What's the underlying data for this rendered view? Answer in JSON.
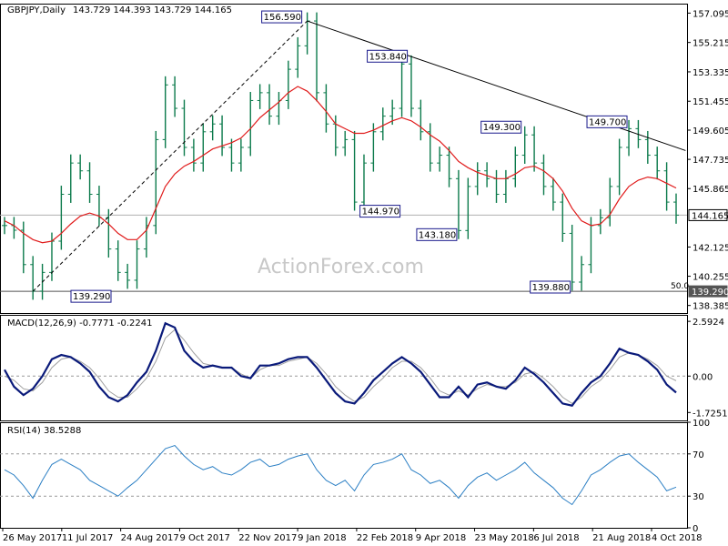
{
  "chart": {
    "symbol_title": "GBPJPY,Daily",
    "ohlc_text": "143.729 144.393 143.729 144.165",
    "watermark": "ActionForex.com",
    "current_price": "144.165",
    "fib_price": "139.290",
    "fib_label": "50.0"
  },
  "chart_data": [
    {
      "type": "line",
      "panel": "price",
      "title": "GBPJPY,Daily 143.729 144.393 143.729 144.165",
      "y_ticks": [
        "157.095",
        "155.215",
        "153.335",
        "151.455",
        "149.605",
        "147.735",
        "145.865",
        "144.165",
        "142.125",
        "140.255",
        "139.290",
        "138.385"
      ],
      "ylim": [
        137.9,
        157.7
      ],
      "x_ticks": [
        "26 May 2017",
        "11 Jul 2017",
        "24 Aug 2017",
        "9 Oct 2017",
        "22 Nov 2017",
        "9 Jan 2018",
        "22 Feb 2018",
        "9 Apr 2018",
        "23 May 2018",
        "6 Jul 2018",
        "21 Aug 2018",
        "4 Oct 2018"
      ],
      "series": [
        {
          "kind": "price",
          "values": [
            143.5,
            143.2,
            141.0,
            139.3,
            140.5,
            142.5,
            145.5,
            147.5,
            147.0,
            145.5,
            144.0,
            142.0,
            140.5,
            140.0,
            142.0,
            143.5,
            149.0,
            152.5,
            151.0,
            148.5,
            147.5,
            149.5,
            150.0,
            148.5,
            147.5,
            148.5,
            151.5,
            152.0,
            150.5,
            151.5,
            153.5,
            155.0,
            156.59,
            152.0,
            150.0,
            148.5,
            149.0,
            145.0,
            147.5,
            149.5,
            150.5,
            151.0,
            153.84,
            151.0,
            149.5,
            147.5,
            148.0,
            146.5,
            143.18,
            146.0,
            147.0,
            146.5,
            145.5,
            146.5,
            148.0,
            149.3,
            147.5,
            146.0,
            145.0,
            143.0,
            139.88,
            141.0,
            143.5,
            144.0,
            146.0,
            148.5,
            149.7,
            149.0,
            148.0,
            147.0,
            145.0,
            144.165
          ]
        },
        {
          "kind": "moving-average",
          "values": [
            143.8,
            143.5,
            143.0,
            142.6,
            142.4,
            142.5,
            143.0,
            143.6,
            144.1,
            144.3,
            144.1,
            143.6,
            143.0,
            142.6,
            142.6,
            143.2,
            144.6,
            146.0,
            146.8,
            147.3,
            147.6,
            148.0,
            148.4,
            148.6,
            148.8,
            149.1,
            149.7,
            150.4,
            150.9,
            151.4,
            152.0,
            152.4,
            152.1,
            151.5,
            150.8,
            150.0,
            149.7,
            149.4,
            149.4,
            149.6,
            149.9,
            150.2,
            150.4,
            150.2,
            149.8,
            149.3,
            148.9,
            148.3,
            147.6,
            147.2,
            146.9,
            146.7,
            146.5,
            146.5,
            146.8,
            147.2,
            147.3,
            147.0,
            146.5,
            145.7,
            144.6,
            143.8,
            143.5,
            143.6,
            144.2,
            145.2,
            146.0,
            146.4,
            146.6,
            146.5,
            146.2,
            145.9
          ]
        }
      ],
      "annotations": [
        {
          "label": "156.590",
          "x": 32,
          "y": 156.59
        },
        {
          "label": "153.840",
          "x": 42,
          "y": 153.84
        },
        {
          "label": "149.300",
          "x": 55,
          "y": 149.3
        },
        {
          "label": "149.700",
          "x": 66,
          "y": 149.7
        },
        {
          "label": "144.970",
          "x": 37,
          "y": 144.97
        },
        {
          "label": "143.180",
          "x": 48,
          "y": 143.18
        },
        {
          "label": "139.880",
          "x": 60,
          "y": 139.88
        },
        {
          "label": "139.290",
          "x": 9,
          "y": 139.29
        }
      ],
      "trendlines": [
        {
          "kind": "resistance",
          "from": {
            "x": 32,
            "y": 156.59
          },
          "to": {
            "x": 72,
            "y": 148.3
          }
        },
        {
          "kind": "support-dashed",
          "from": {
            "x": 3,
            "y": 139.29
          },
          "to": {
            "x": 32,
            "y": 156.59
          }
        }
      ],
      "horizontal_lines": [
        {
          "y": 144.165
        },
        {
          "y": 139.29
        }
      ]
    },
    {
      "type": "line",
      "panel": "macd",
      "title": "MACD(12,26,9) -0.7771 -0.2241",
      "y_ticks": [
        "2.5924",
        "0.00",
        "-1.7251"
      ],
      "ylim": [
        -2.1,
        2.9
      ],
      "series": [
        {
          "kind": "macd",
          "values": [
            0.3,
            -0.5,
            -0.9,
            -0.6,
            0.0,
            0.8,
            1.0,
            0.9,
            0.6,
            0.2,
            -0.5,
            -1.0,
            -1.2,
            -0.9,
            -0.3,
            0.2,
            1.2,
            2.5,
            2.3,
            1.2,
            0.7,
            0.4,
            0.5,
            0.4,
            0.4,
            0.0,
            -0.1,
            0.5,
            0.5,
            0.6,
            0.8,
            0.9,
            0.9,
            0.4,
            -0.2,
            -0.8,
            -1.2,
            -1.3,
            -0.8,
            -0.2,
            0.2,
            0.6,
            0.9,
            0.6,
            0.2,
            -0.4,
            -1.0,
            -1.0,
            -0.5,
            -1.0,
            -0.4,
            -0.3,
            -0.5,
            -0.6,
            -0.2,
            0.4,
            0.1,
            -0.3,
            -0.8,
            -1.3,
            -1.4,
            -0.8,
            -0.3,
            0.0,
            0.6,
            1.3,
            1.1,
            1.0,
            0.7,
            0.3,
            -0.4,
            -0.78
          ]
        },
        {
          "kind": "signal",
          "values": [
            0.0,
            -0.2,
            -0.6,
            -0.7,
            -0.3,
            0.4,
            0.8,
            0.9,
            0.7,
            0.4,
            -0.1,
            -0.7,
            -1.0,
            -1.0,
            -0.6,
            -0.1,
            0.7,
            1.8,
            2.2,
            1.7,
            1.1,
            0.6,
            0.5,
            0.4,
            0.4,
            0.1,
            -0.1,
            0.3,
            0.5,
            0.5,
            0.7,
            0.8,
            0.9,
            0.6,
            0.1,
            -0.5,
            -0.9,
            -1.2,
            -1.0,
            -0.5,
            -0.1,
            0.4,
            0.7,
            0.7,
            0.4,
            -0.1,
            -0.7,
            -0.9,
            -0.7,
            -0.9,
            -0.6,
            -0.4,
            -0.5,
            -0.5,
            -0.3,
            0.1,
            0.2,
            -0.1,
            -0.5,
            -1.0,
            -1.3,
            -1.0,
            -0.5,
            -0.2,
            0.3,
            0.9,
            1.1,
            1.0,
            0.8,
            0.5,
            0.0,
            -0.22
          ]
        }
      ]
    },
    {
      "type": "line",
      "panel": "rsi",
      "title": "RSI(14) 38.5288",
      "y_ticks": [
        "100",
        "70",
        "30",
        "0"
      ],
      "ylim": [
        0,
        100
      ],
      "levels": [
        70,
        30
      ],
      "series": [
        {
          "kind": "rsi",
          "values": [
            55,
            50,
            40,
            28,
            45,
            60,
            65,
            60,
            55,
            45,
            40,
            35,
            30,
            38,
            45,
            55,
            65,
            75,
            78,
            68,
            60,
            55,
            58,
            52,
            50,
            55,
            62,
            65,
            58,
            60,
            65,
            68,
            70,
            55,
            45,
            40,
            45,
            35,
            50,
            60,
            62,
            65,
            70,
            55,
            50,
            42,
            45,
            38,
            28,
            40,
            48,
            52,
            45,
            50,
            55,
            62,
            52,
            45,
            38,
            28,
            22,
            35,
            50,
            55,
            62,
            68,
            70,
            62,
            55,
            48,
            35,
            38.5
          ]
        }
      ]
    }
  ]
}
